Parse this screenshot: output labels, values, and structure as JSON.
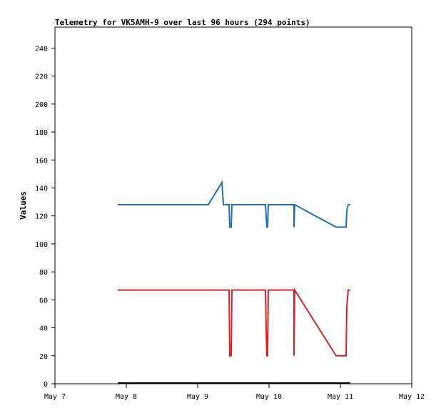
{
  "chart_data": {
    "type": "line",
    "title": "Telemetry for VK5AMH-9 over last 96 hours (294 points)",
    "xlabel": "",
    "ylabel": "Values",
    "xlim": [
      "May 7",
      "May 12"
    ],
    "ylim": [
      0,
      255
    ],
    "x_ticks": [
      "May 7",
      "May 8",
      "May 9",
      "May 10",
      "May 11",
      "May 12"
    ],
    "y_ticks": [
      0,
      20,
      40,
      60,
      80,
      100,
      120,
      140,
      160,
      180,
      200,
      220,
      240
    ],
    "grid": false,
    "legend": "none",
    "series": [
      {
        "color": "#1f6fba",
        "points": [
          [
            7.88,
            128
          ],
          [
            9.15,
            128
          ],
          [
            9.34,
            144
          ],
          [
            9.36,
            128
          ],
          [
            9.44,
            128
          ],
          [
            9.45,
            112
          ],
          [
            9.47,
            112
          ],
          [
            9.48,
            128
          ],
          [
            9.95,
            128
          ],
          [
            9.96,
            120
          ],
          [
            9.97,
            112
          ],
          [
            9.98,
            112
          ],
          [
            9.99,
            128
          ],
          [
            10.35,
            128
          ],
          [
            10.35,
            112
          ],
          [
            10.36,
            128
          ],
          [
            10.94,
            112
          ],
          [
            11.08,
            112
          ],
          [
            11.09,
            124
          ],
          [
            11.11,
            128
          ],
          [
            11.14,
            128
          ]
        ]
      },
      {
        "color": "#e02020",
        "points": [
          [
            7.88,
            67
          ],
          [
            9.44,
            67
          ],
          [
            9.45,
            20
          ],
          [
            9.47,
            20
          ],
          [
            9.48,
            67
          ],
          [
            9.95,
            67
          ],
          [
            9.96,
            40
          ],
          [
            9.97,
            20
          ],
          [
            9.98,
            20
          ],
          [
            9.99,
            67
          ],
          [
            10.35,
            67
          ],
          [
            10.35,
            20
          ],
          [
            10.36,
            67
          ],
          [
            10.94,
            20
          ],
          [
            11.08,
            20
          ],
          [
            11.09,
            55
          ],
          [
            11.11,
            67
          ],
          [
            11.14,
            67
          ]
        ]
      },
      {
        "color": "#000000",
        "points": [
          [
            7.88,
            0.5
          ],
          [
            11.14,
            0.5
          ]
        ]
      }
    ]
  }
}
